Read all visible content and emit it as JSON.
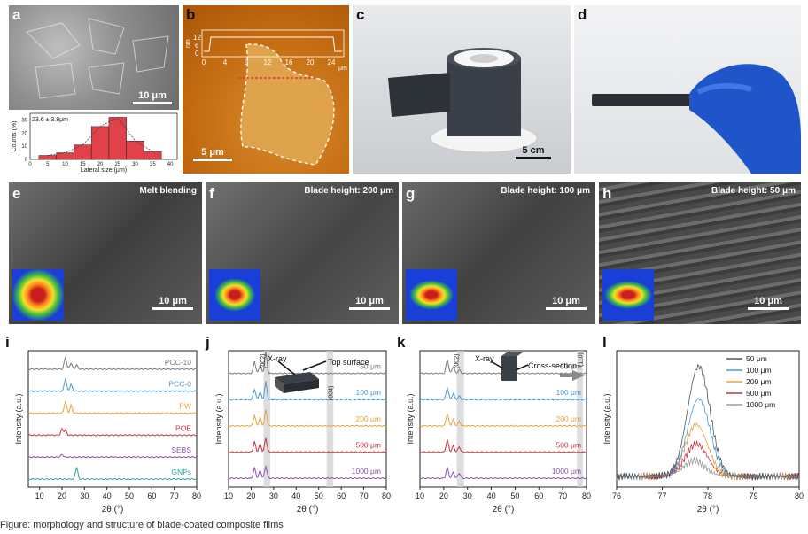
{
  "labels": {
    "a": "a",
    "b": "b",
    "c": "c",
    "d": "d",
    "e": "e",
    "f": "f",
    "g": "g",
    "h": "h",
    "i": "i",
    "j": "j",
    "k": "k",
    "l": "l"
  },
  "panel_a": {
    "scale": "10 μm",
    "hist_annotation": "23.6 ± 3.8μm",
    "ylabel": "Counts (%)",
    "xlabel": "Lateral size (μm)",
    "xticks": [
      "0",
      "5",
      "10",
      "15",
      "20",
      "25",
      "30",
      "35",
      "40"
    ],
    "yticks": [
      "0",
      "10",
      "20",
      "30"
    ]
  },
  "panel_b": {
    "scale": "5 μm",
    "profile_unit_y": "nm",
    "profile_unit_x": "μm",
    "profile_yticks": [
      "12",
      "6",
      "0"
    ],
    "profile_xticks": [
      "0",
      "4",
      "8",
      "12",
      "16",
      "20",
      "24"
    ]
  },
  "panel_c": {
    "scale": "5 cm"
  },
  "sem": {
    "e": {
      "tag": "Melt blending",
      "scale": "10 μm"
    },
    "f": {
      "tag": "Blade height: 200 μm",
      "scale": "10 μm"
    },
    "g": {
      "tag": "Blade height: 100 μm",
      "scale": "10 μm"
    },
    "h": {
      "tag": "Blade height: 50 μm",
      "scale": "10 μm"
    }
  },
  "panel_i": {
    "ylabel": "Intensity (a.u.)",
    "xlabel": "2θ (°)",
    "xticks": [
      "10",
      "20",
      "30",
      "40",
      "50",
      "60",
      "70",
      "80"
    ],
    "traces": [
      {
        "name": "PCC-10",
        "color": "#7a7a7a"
      },
      {
        "name": "PCC-0",
        "color": "#4a9ad6"
      },
      {
        "name": "PW",
        "color": "#e8a33a"
      },
      {
        "name": "POE",
        "color": "#c8323c"
      },
      {
        "name": "SEBS",
        "color": "#8a4fb0"
      },
      {
        "name": "GNPs",
        "color": "#2ba5a5"
      }
    ]
  },
  "panel_j": {
    "ylabel": "Intensity (a.u.)",
    "xlabel": "2θ (°)",
    "xticks": [
      "10",
      "20",
      "30",
      "40",
      "50",
      "60",
      "70",
      "80"
    ],
    "peak1": "(002)",
    "peak2": "(004)",
    "xray": "X-ray",
    "surface": "Top surface",
    "traces": [
      {
        "name": "50 μm",
        "color": "#7a7a7a"
      },
      {
        "name": "100 μm",
        "color": "#4a9ad6"
      },
      {
        "name": "200 μm",
        "color": "#e8a33a"
      },
      {
        "name": "500 μm",
        "color": "#c8323c"
      },
      {
        "name": "1000 μm",
        "color": "#8a4fb0"
      }
    ]
  },
  "panel_k": {
    "ylabel": "Intensity (a.u.)",
    "xlabel": "2θ (°)",
    "xticks": [
      "10",
      "20",
      "30",
      "40",
      "50",
      "60",
      "70",
      "80"
    ],
    "peak1": "(002)",
    "peak2": "(110)",
    "xray": "X-ray",
    "surface": "Cross-section",
    "traces": [
      {
        "name": "50 μm",
        "color": "#7a7a7a"
      },
      {
        "name": "100 μm",
        "color": "#4a9ad6"
      },
      {
        "name": "200 μm",
        "color": "#e8a33a"
      },
      {
        "name": "500 μm",
        "color": "#c8323c"
      },
      {
        "name": "1000 μm",
        "color": "#8a4fb0"
      }
    ]
  },
  "panel_l": {
    "ylabel": "Intensity (a.u.)",
    "xlabel": "2θ (°)",
    "xticks": [
      "76",
      "77",
      "78",
      "79",
      "80"
    ],
    "legend": [
      {
        "name": "50 μm",
        "color": "#555555"
      },
      {
        "name": "100 μm",
        "color": "#4a9ad6"
      },
      {
        "name": "200 μm",
        "color": "#e8a33a"
      },
      {
        "name": "500 μm",
        "color": "#c8323c"
      },
      {
        "name": "1000 μm",
        "color": "#9a9a9a"
      }
    ]
  },
  "chart_data": [
    {
      "type": "bar",
      "title": "",
      "xlabel": "Lateral size (μm)",
      "ylabel": "Counts (%)",
      "categories": [
        "5",
        "10",
        "15",
        "20",
        "25",
        "30",
        "35"
      ],
      "values": [
        3,
        5,
        11,
        25,
        32,
        14,
        6
      ],
      "ylim": [
        0,
        35
      ]
    },
    {
      "type": "line",
      "xlabel": "2θ (°)",
      "ylabel": "Intensity (a.u.)",
      "series": [
        {
          "name": "PCC-10"
        },
        {
          "name": "PCC-0"
        },
        {
          "name": "PW"
        },
        {
          "name": "POE"
        },
        {
          "name": "SEBS"
        },
        {
          "name": "GNPs"
        }
      ],
      "xlim": [
        5,
        80
      ]
    },
    {
      "type": "line",
      "xlabel": "2θ (°)",
      "ylabel": "Intensity (a.u.)",
      "series": [
        {
          "name": "50 μm"
        },
        {
          "name": "100 μm"
        },
        {
          "name": "200 μm"
        },
        {
          "name": "500 μm"
        },
        {
          "name": "1000 μm"
        }
      ],
      "xlim": [
        10,
        80
      ]
    },
    {
      "type": "line",
      "xlabel": "2θ (°)",
      "ylabel": "Intensity (a.u.)",
      "series": [
        {
          "name": "50 μm"
        },
        {
          "name": "100 μm"
        },
        {
          "name": "200 μm"
        },
        {
          "name": "500 μm"
        },
        {
          "name": "1000 μm"
        }
      ],
      "xlim": [
        10,
        80
      ]
    },
    {
      "type": "line",
      "xlabel": "2θ (°)",
      "ylabel": "Intensity (a.u.)",
      "series": [
        {
          "name": "50 μm",
          "peak": [
            77.8,
            0.85
          ]
        },
        {
          "name": "100 μm",
          "peak": [
            77.8,
            0.6
          ]
        },
        {
          "name": "200 μm",
          "peak": [
            77.75,
            0.4
          ]
        },
        {
          "name": "500 μm",
          "peak": [
            77.75,
            0.25
          ]
        },
        {
          "name": "1000 μm",
          "peak": [
            77.7,
            0.12
          ]
        }
      ],
      "xlim": [
        76,
        80
      ]
    }
  ],
  "caption": "Figure: morphology and structure of blade-coated composite films"
}
